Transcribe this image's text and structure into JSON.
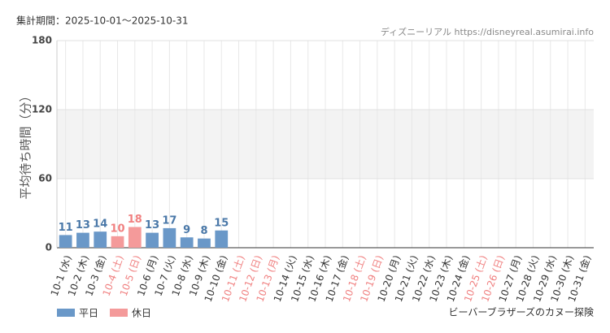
{
  "chart_data": {
    "type": "bar",
    "period": "集計期間：2025-10-01～2025-10-31",
    "source": "ディズニーリアル https://disneyreal.asumirai.info",
    "attraction": "ビーバーブラザーズのカヌー探険",
    "y_label": "平均待ち時間（分）",
    "categories": [
      "10-1 (水)",
      "10-2 (木)",
      "10-3 (金)",
      "10-4 (土)",
      "10-5 (日)",
      "10-6 (月)",
      "10-7 (火)",
      "10-8 (水)",
      "10-9 (木)",
      "10-10 (金)",
      "10-11 (土)",
      "10-12 (日)",
      "10-13 (月)",
      "10-14 (火)",
      "10-15 (水)",
      "10-16 (木)",
      "10-17 (金)",
      "10-18 (土)",
      "10-19 (日)",
      "10-20 (月)",
      "10-21 (火)",
      "10-22 (水)",
      "10-23 (木)",
      "10-24 (金)",
      "10-25 (土)",
      "10-26 (日)",
      "10-27 (月)",
      "10-28 (火)",
      "10-29 (水)",
      "10-30 (木)",
      "10-31 (金)"
    ],
    "holiday_indices": [
      3,
      4,
      10,
      11,
      12,
      17,
      18,
      24,
      25
    ],
    "holiday_label_color": "#f08080",
    "series": [
      {
        "name": "平日",
        "color": "#6a98c8",
        "label_color": "#4a78a8",
        "values": [
          11,
          13,
          14,
          null,
          null,
          13,
          17,
          9,
          8,
          15,
          null,
          null,
          null,
          null,
          null,
          null,
          null,
          null,
          null,
          null,
          null,
          null,
          null,
          null,
          null,
          null,
          null,
          null,
          null,
          null,
          null
        ]
      },
      {
        "name": "休日",
        "color": "#f49a9a",
        "label_color": "#f08080",
        "values": [
          null,
          null,
          null,
          10,
          18,
          null,
          null,
          null,
          null,
          null,
          null,
          null,
          null,
          null,
          null,
          null,
          null,
          null,
          null,
          null,
          null,
          null,
          null,
          null,
          null,
          null,
          null,
          null,
          null,
          null,
          null
        ]
      }
    ],
    "ylim": [
      0,
      180
    ],
    "yticks": [
      0,
      60,
      120,
      180
    ],
    "grid": true
  }
}
